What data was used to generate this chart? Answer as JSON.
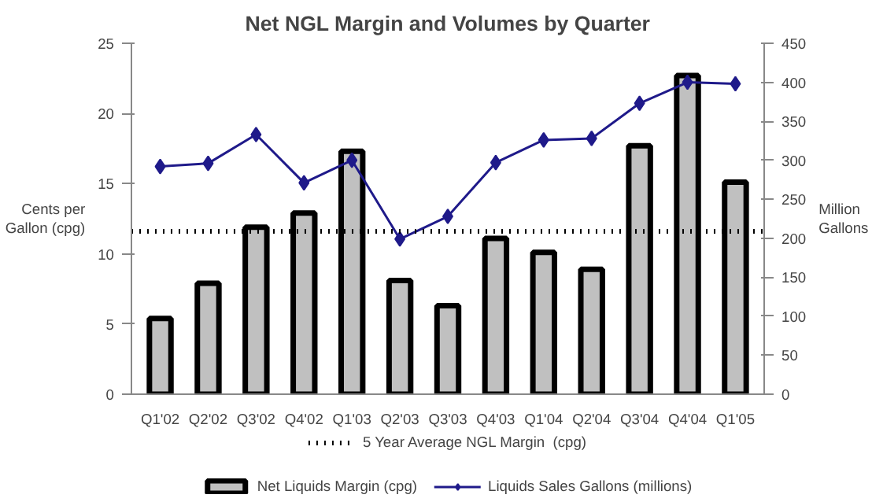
{
  "chart_data": {
    "type": "bar",
    "title": "Net NGL Margin and Volumes by Quarter",
    "ylabel": "Cents per Gallon (cpg)",
    "y2label": "Million Gallons",
    "categories": [
      "Q1'02",
      "Q2'02",
      "Q3'02",
      "Q4'02",
      "Q1'03",
      "Q2'03",
      "Q3'03",
      "Q4'03",
      "Q1'04",
      "Q2'04",
      "Q3'04",
      "Q4'04",
      "Q1'05"
    ],
    "series": [
      {
        "name": "Net Liquids Margin (cpg)",
        "color": "#c0c0c0",
        "values": [
          5.4,
          7.9,
          11.9,
          12.9,
          17.3,
          8.1,
          6.3,
          11.1,
          10.1,
          8.9,
          17.7,
          22.7,
          15.1
        ]
      },
      {
        "name": "Liquids Sales Gallons (millions)",
        "type": "line",
        "axis": "y2",
        "color": "#1f1a8a",
        "marker": "diamond",
        "values": [
          292,
          296,
          333,
          271,
          300,
          199,
          228,
          297,
          326,
          328,
          373,
          400,
          398
        ]
      }
    ],
    "ylim": [
      0,
      25
    ],
    "yticks": [
      0,
      5,
      10,
      15,
      20,
      25
    ],
    "y2lim": [
      0,
      450
    ],
    "y2ticks": [
      0,
      50,
      100,
      150,
      200,
      250,
      300,
      350,
      400,
      450
    ],
    "ref_lines": [
      {
        "axis": "y",
        "value": 11.6,
        "label": "5 Year Average NGL Margin  (cpg)",
        "color": "#000000",
        "line_style": "dotted"
      }
    ],
    "grid": false,
    "legend": "bottom"
  }
}
